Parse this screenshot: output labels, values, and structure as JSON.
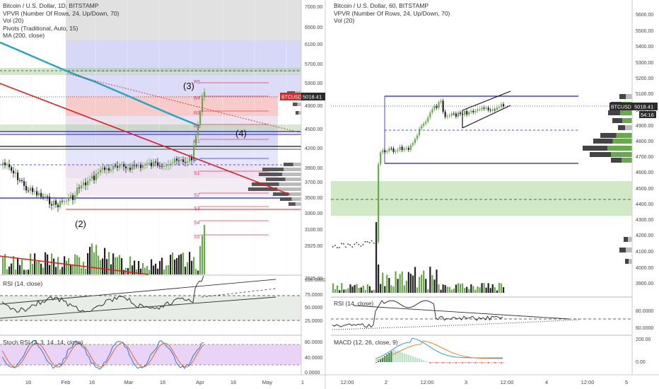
{
  "left": {
    "legend": [
      "Bitcoin / U.S. Dollar, 1D, BITSTAMP",
      "VPVR (Number Of Rows, 24, Up/Down, 70)",
      "Vol (20)",
      "Pivots (Traditional, Auto, 15)",
      "MA (200, close)"
    ],
    "price_axis": [
      "7000.00",
      "6500.00",
      "6100.00",
      "5700.00",
      "5300.00",
      "4900.00",
      "4500.00",
      "4200.00",
      "3900.00",
      "3700.00",
      "3500.00",
      "3300.00",
      "3100.00",
      "2925.00",
      "2625.00"
    ],
    "price_tag": {
      "symbol": "BTCUSD",
      "value": "5018.41"
    },
    "pivot_labels": [
      "R5",
      "R4",
      "R3",
      "R2",
      "R1",
      "P",
      "S1",
      "S2",
      "S3",
      "S4",
      "S5"
    ],
    "wave_labels": [
      "(2)",
      "(3)",
      "(4)"
    ],
    "rsi": {
      "label": "RSI (14, close)",
      "axis": [
        "100.0000",
        "75.0000",
        "50.0000",
        "25.0000"
      ]
    },
    "stoch": {
      "label": "Stoch RSI (3, 3, 14, 14, close)",
      "axis": [
        "80.0000",
        "40.0000",
        "0.0000"
      ]
    },
    "time_axis": [
      "16",
      "Feb",
      "16",
      "Mar",
      "16",
      "Apr",
      "16",
      "May",
      "1"
    ]
  },
  "right": {
    "legend": [
      "Bitcoin / U.S. Dollar, 60, BITSTAMP",
      "VPVR (Number Of Rows, 24, Up/Down, 70)",
      "Vol (20)"
    ],
    "price_axis": [
      "5600.00",
      "5500.00",
      "5400.00",
      "5300.00",
      "5200.00",
      "5100.00",
      "5000.00",
      "4900.00",
      "4800.00",
      "4700.00",
      "4600.00",
      "4500.00",
      "4400.00",
      "4300.00",
      "4200.00",
      "4100.00",
      "4000.00",
      "3900.00"
    ],
    "price_tag": {
      "symbol": "BTCUSD",
      "value": "5018.41",
      "countdown": "54:16"
    },
    "rsi": {
      "label": "RSI (14, close)",
      "axis": [
        "80.0000",
        "60.0000"
      ]
    },
    "macd": {
      "label": "MACD (12, 26, close, 9)",
      "axis": [
        "200.00",
        "0.00"
      ]
    },
    "time_axis": [
      "12:00",
      "2",
      "12:00",
      "3",
      "12:00",
      "4",
      "12:00",
      "5"
    ]
  },
  "colors": {
    "up": "#6aa84f",
    "down": "#3c3c3c",
    "pivot": "#e03c5a",
    "ma": "#2aa6c4",
    "trend": "#e01e1e"
  }
}
